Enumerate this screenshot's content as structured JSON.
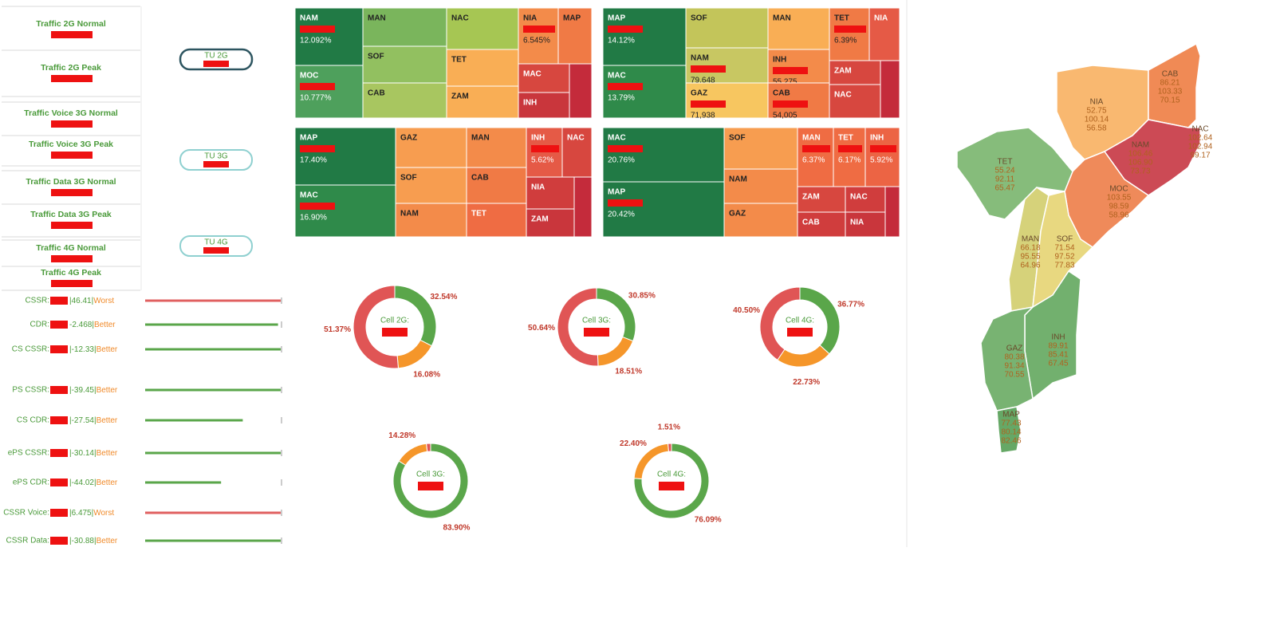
{
  "kpis": [
    "Traffic 2G Normal",
    "Traffic 2G Peak",
    "Traffic Voice 3G Normal",
    "Traffic Voice 3G Peak",
    "Traffic Data 3G Normal",
    "Traffic Data 3G Peak",
    "Traffic 4G Normal",
    "Traffic 4G Peak"
  ],
  "buttons": [
    "TU 2G",
    "TU 3G",
    "TU 4G"
  ],
  "metrics": [
    {
      "name": "CSSR:",
      "value": "|46.41|",
      "status": "Worst",
      "level": 100,
      "color": "#e06060"
    },
    {
      "name": "CDR:",
      "value": "-2.468|",
      "status": "Better",
      "level": 98,
      "color": "#5aa64a"
    },
    {
      "name": "CS CSSR:",
      "value": "|-12.33|",
      "status": "Better",
      "level": 100,
      "color": "#5aa64a"
    },
    {
      "name": "PS CSSR:",
      "value": "|-39.45|",
      "status": "Better",
      "level": 100,
      "color": "#5aa64a"
    },
    {
      "name": "CS CDR:",
      "value": "|-27.54|",
      "status": "Better",
      "level": 72,
      "color": "#5aa64a"
    },
    {
      "name": "ePS CSSR:",
      "value": "|-30.14|",
      "status": "Better",
      "level": 100,
      "color": "#5aa64a"
    },
    {
      "name": "ePS CDR:",
      "value": "|-44.02|",
      "status": "Better",
      "level": 56,
      "color": "#5aa64a"
    },
    {
      "name": "CSSR Voice:",
      "value": "|6.475|",
      "status": "Worst",
      "level": 100,
      "color": "#e06060"
    },
    {
      "name": "CSSR Data:",
      "value": "|-30.88|",
      "status": "Better",
      "level": 100,
      "color": "#5aa64a"
    }
  ],
  "treemaps": [
    {
      "cells": [
        {
          "label": "NAM",
          "value": "12.092%",
          "color": "#217a45"
        },
        {
          "label": "MOC",
          "value": "10.777%",
          "color": "#4ea05c"
        },
        {
          "label": "MAN",
          "color": "#7ab55c"
        },
        {
          "label": "SOF",
          "color": "#92c060"
        },
        {
          "label": "CAB",
          "color": "#a8c660"
        },
        {
          "label": "NAC",
          "color": "#a6c653"
        },
        {
          "label": "TET",
          "color": "#f9ae55"
        },
        {
          "label": "ZAM",
          "color": "#f9ae55"
        },
        {
          "label": "NIA",
          "value": "6.545%",
          "color": "#f38b4a"
        },
        {
          "label": "MAP",
          "color": "#f07a45"
        },
        {
          "label": "MAC",
          "color": "#d7473f"
        },
        {
          "label": "INH",
          "color": "#c9363c"
        },
        {
          "color": "#c42b3b"
        }
      ]
    },
    {
      "cells": [
        {
          "label": "MAP",
          "value": "14.12%",
          "color": "#217a45"
        },
        {
          "label": "MAC",
          "value": "13.79%",
          "color": "#2f8a4a"
        },
        {
          "label": "SOF",
          "color": "#c3c55a"
        },
        {
          "label": "NAM",
          "value": "79,648",
          "color": "#c8c762"
        },
        {
          "label": "GAZ",
          "value": "71,938",
          "color": "#f7c660"
        },
        {
          "label": "MAN",
          "color": "#f9ae55"
        },
        {
          "label": "INH",
          "value": "55,275",
          "color": "#f38b4a"
        },
        {
          "label": "CAB",
          "value": "54,005",
          "color": "#f07a45"
        },
        {
          "label": "TET",
          "value": "6.39%",
          "color": "#f07a45"
        },
        {
          "label": "NIA",
          "color": "#e55a46"
        },
        {
          "label": "ZAM",
          "color": "#d7473f"
        },
        {
          "label": "NAC",
          "color": "#d7473f"
        },
        {
          "color": "#c42b3b"
        }
      ]
    },
    {
      "cells": [
        {
          "label": "MAP",
          "value": "17.40%",
          "color": "#217a45"
        },
        {
          "label": "MAC",
          "value": "16.90%",
          "color": "#2f8a4a"
        },
        {
          "label": "GAZ",
          "color": "#f79d50"
        },
        {
          "label": "SOF",
          "color": "#f79d50"
        },
        {
          "label": "NAM",
          "color": "#f38b4a"
        },
        {
          "label": "MAN",
          "color": "#f38b4a"
        },
        {
          "label": "CAB",
          "color": "#f07a45"
        },
        {
          "label": "TET",
          "color": "#ef6c43"
        },
        {
          "label": "INH",
          "value": "5.62%",
          "color": "#e55a46"
        },
        {
          "label": "NAC",
          "color": "#d7473f"
        },
        {
          "label": "NIA",
          "color": "#d03d3d"
        },
        {
          "label": "ZAM",
          "color": "#c9363c"
        },
        {
          "color": "#c42b3b"
        }
      ]
    },
    {
      "cells": [
        {
          "label": "MAC",
          "value": "20.76%",
          "color": "#217a45"
        },
        {
          "label": "MAP",
          "value": "20.42%",
          "color": "#217a45"
        },
        {
          "label": "SOF",
          "color": "#f79d50"
        },
        {
          "label": "NAM",
          "color": "#f38b4a"
        },
        {
          "label": "GAZ",
          "color": "#f38b4a"
        },
        {
          "label": "MAN",
          "value": "6.37%",
          "color": "#ef6c43"
        },
        {
          "label": "TET",
          "value": "6.17%",
          "color": "#ef6c43"
        },
        {
          "label": "INH",
          "value": "5.92%",
          "color": "#ec6444"
        },
        {
          "label": "ZAM",
          "color": "#d7473f"
        },
        {
          "label": "NAC",
          "color": "#d03d3d"
        },
        {
          "label": "CAB",
          "color": "#d03d3d"
        },
        {
          "label": "NIA",
          "color": "#c9363c"
        },
        {
          "color": "#c42b3b"
        }
      ]
    }
  ],
  "donuts": [
    {
      "title": "Cell 2G:",
      "segments": [
        {
          "value": 32.54,
          "label": "32.54%",
          "color": "#5aa64a"
        },
        {
          "value": 16.08,
          "label": "16.08%",
          "color": "#f5962a"
        },
        {
          "value": 51.37,
          "label": "51.37%",
          "color": "#e05555"
        }
      ]
    },
    {
      "title": "Cell 3G:",
      "segments": [
        {
          "value": 30.85,
          "label": "30.85%",
          "color": "#5aa64a"
        },
        {
          "value": 18.51,
          "label": "18.51%",
          "color": "#f5962a"
        },
        {
          "value": 50.64,
          "label": "50.64%",
          "color": "#e05555"
        }
      ]
    },
    {
      "title": "Cell 4G:",
      "segments": [
        {
          "value": 36.77,
          "label": "36.77%",
          "color": "#5aa64a"
        },
        {
          "value": 22.73,
          "label": "22.73%",
          "color": "#f5962a"
        },
        {
          "value": 40.5,
          "label": "40.50%",
          "color": "#e05555"
        }
      ]
    },
    {
      "title": "Cell 3G:",
      "segments": [
        {
          "value": 83.9,
          "label": "83.90%",
          "color": "#5aa64a"
        },
        {
          "value": 14.28,
          "label": "14.28%",
          "color": "#f5962a"
        },
        {
          "value": 1.82,
          "color": "#e05555"
        }
      ]
    },
    {
      "title": "Cell 4G:",
      "segments": [
        {
          "value": 76.09,
          "label": "76.09%",
          "color": "#5aa64a"
        },
        {
          "value": 22.4,
          "label": "22.40%",
          "color": "#f5962a"
        },
        {
          "value": 1.51,
          "label": "1.51%",
          "color": "#e05555"
        }
      ]
    }
  ],
  "map": {
    "regions": [
      {
        "name": "NIA",
        "values": [
          "52.75",
          "100.14",
          "56.58"
        ],
        "color": "#f9b870"
      },
      {
        "name": "CAB",
        "values": [
          "86.21",
          "103.33",
          "70.15"
        ],
        "color": "#f08a55"
      },
      {
        "name": "NAM",
        "values": [
          "106.46",
          "106.90",
          "73.73"
        ],
        "color": "#cc4a55"
      },
      {
        "name": "NAC",
        "values": [
          "102.64",
          "102.94",
          "99.17"
        ],
        "color": "#cc4a55"
      },
      {
        "name": "MOC",
        "values": [
          "103.55",
          "98.59",
          "58.96"
        ],
        "color": "#ef8a5a"
      },
      {
        "name": "TET",
        "values": [
          "55.24",
          "92.11",
          "65.47"
        ],
        "color": "#86bc7b"
      },
      {
        "name": "MAN",
        "values": [
          "66.18",
          "95.55",
          "64.96"
        ],
        "color": "#d6d27a"
      },
      {
        "name": "SOF",
        "values": [
          "71.54",
          "97.52",
          "77.83"
        ],
        "color": "#e8d880"
      },
      {
        "name": "INH",
        "values": [
          "89.91",
          "85.41",
          "67.45"
        ],
        "color": "#72b06e"
      },
      {
        "name": "GAZ",
        "values": [
          "80.38",
          "91.34",
          "70.55"
        ],
        "color": "#78b372"
      },
      {
        "name": "MAP",
        "values": [
          "77.43",
          "80.14",
          "82.46"
        ],
        "color": "#66a866"
      }
    ]
  }
}
